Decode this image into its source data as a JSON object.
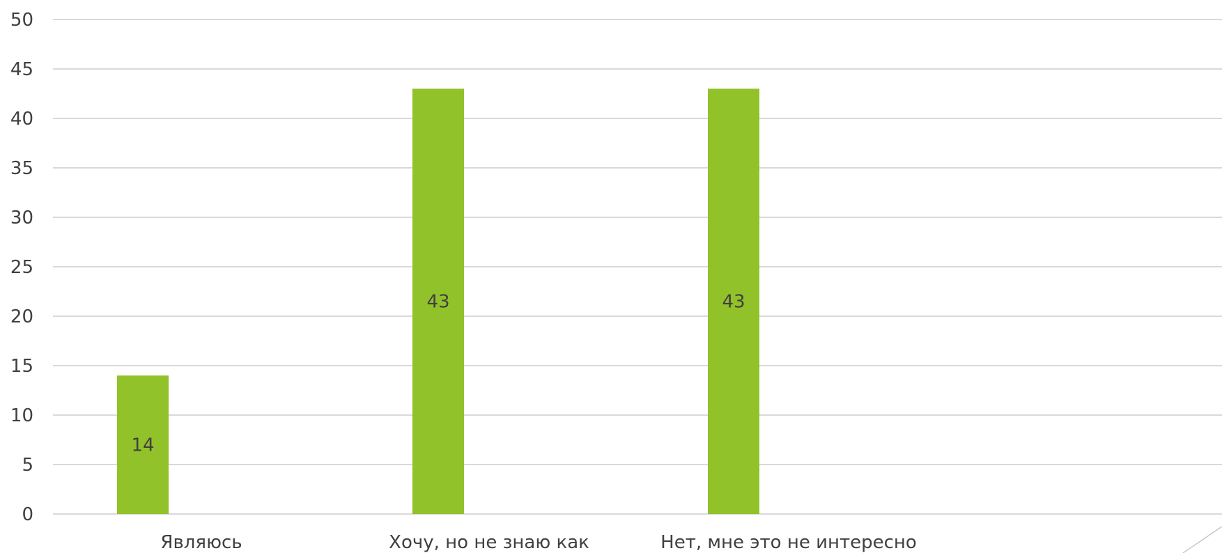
{
  "chart_data": {
    "type": "bar",
    "categories": [
      "Являюсь",
      "Хочу, но не знаю как",
      "Нет, мне это не интересно"
    ],
    "values": [
      14,
      43,
      43
    ],
    "data_labels": [
      "14",
      "43",
      "43"
    ],
    "title": "",
    "xlabel": "",
    "ylabel": "",
    "ylim": [
      0,
      50
    ],
    "yticks": [
      0,
      5,
      10,
      15,
      20,
      25,
      30,
      35,
      40,
      45,
      50
    ],
    "grid": true,
    "legend": "none",
    "bar_color": "#92c229"
  }
}
